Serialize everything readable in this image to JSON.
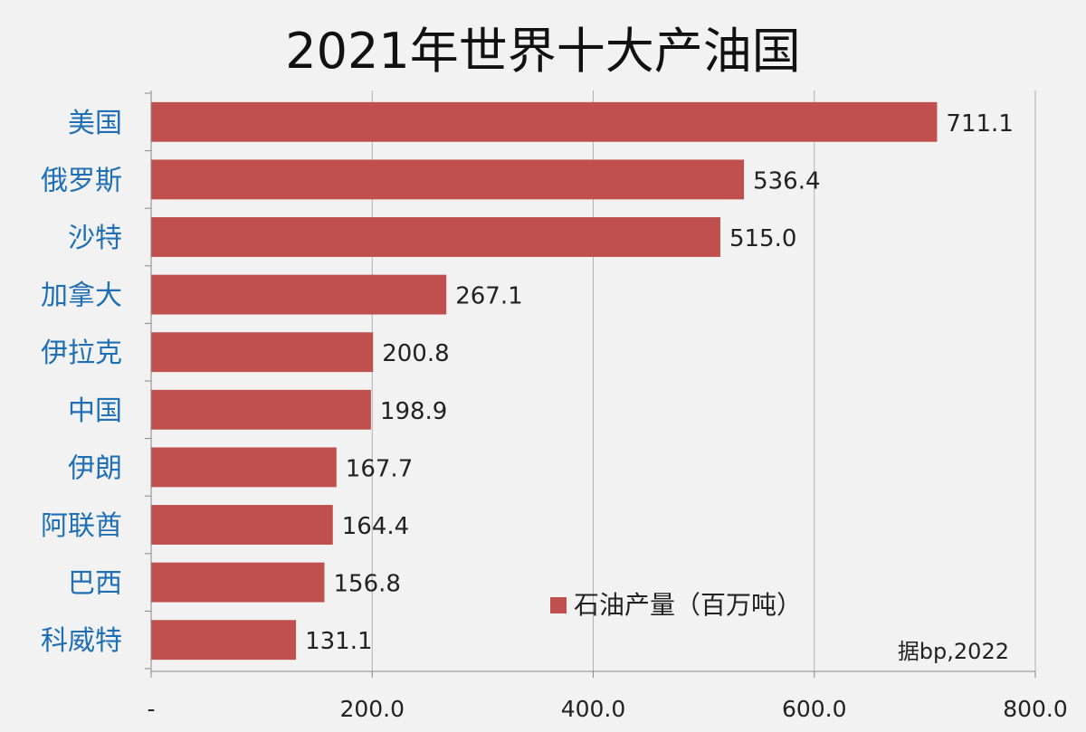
{
  "chart_data": {
    "type": "bar",
    "orientation": "horizontal",
    "title": "2021年世界十大产油国",
    "categories": [
      "美国",
      "俄罗斯",
      "沙特",
      "加拿大",
      "伊拉克",
      "中国",
      "伊朗",
      "阿联酋",
      "巴西",
      "科威特"
    ],
    "series": [
      {
        "name": "石油产量（百万吨）",
        "values": [
          711.1,
          536.4,
          515.0,
          267.1,
          200.8,
          198.9,
          167.7,
          164.4,
          156.8,
          131.1
        ],
        "color": "#c0504d"
      }
    ],
    "value_labels": [
      "711.1",
      "536.4",
      "515.0",
      "267.1",
      "200.8",
      "198.9",
      "167.7",
      "164.4",
      "156.8",
      "131.1"
    ],
    "xlim": [
      0,
      800
    ],
    "x_ticks": [
      0,
      200,
      400,
      600,
      800
    ],
    "x_tick_labels": [
      "-",
      "200.0",
      "400.0",
      "600.0",
      "800.0"
    ],
    "grid": true,
    "legend_position": "bottom-right, inside plot",
    "annotation": "据bp,2022",
    "colors": {
      "category_label": "#1f6fb5",
      "bar": "#c0504d",
      "grid": "#b0b0b0",
      "background": "#f2f2f2"
    }
  }
}
